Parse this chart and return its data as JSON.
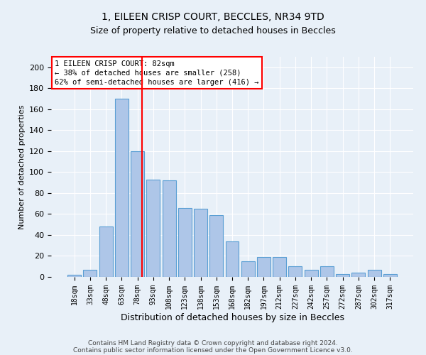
{
  "title1": "1, EILEEN CRISP COURT, BECCLES, NR34 9TD",
  "title2": "Size of property relative to detached houses in Beccles",
  "xlabel": "Distribution of detached houses by size in Beccles",
  "ylabel": "Number of detached properties",
  "categories": [
    "18sqm",
    "33sqm",
    "48sqm",
    "63sqm",
    "78sqm",
    "93sqm",
    "108sqm",
    "123sqm",
    "138sqm",
    "153sqm",
    "168sqm",
    "182sqm",
    "197sqm",
    "212sqm",
    "227sqm",
    "242sqm",
    "257sqm",
    "272sqm",
    "287sqm",
    "302sqm",
    "317sqm"
  ],
  "values": [
    2,
    7,
    48,
    170,
    120,
    93,
    92,
    66,
    65,
    59,
    34,
    15,
    19,
    19,
    10,
    7,
    10,
    3,
    4,
    7,
    3
  ],
  "bar_color": "#aec6e8",
  "bar_edge_color": "#5a9fd4",
  "bg_color": "#e8f0f8",
  "grid_color": "#ffffff",
  "vline_x": 4.27,
  "vline_color": "red",
  "annotation_text": "1 EILEEN CRISP COURT: 82sqm\n← 38% of detached houses are smaller (258)\n62% of semi-detached houses are larger (416) →",
  "annotation_box_color": "white",
  "annotation_box_edge": "red",
  "footer1": "Contains HM Land Registry data © Crown copyright and database right 2024.",
  "footer2": "Contains public sector information licensed under the Open Government Licence v3.0.",
  "ylim": [
    0,
    210
  ],
  "yticks": [
    0,
    20,
    40,
    60,
    80,
    100,
    120,
    140,
    160,
    180,
    200
  ],
  "title1_fontsize": 10,
  "title2_fontsize": 9,
  "xlabel_fontsize": 9,
  "ylabel_fontsize": 8,
  "tick_fontsize": 8,
  "xtick_fontsize": 7,
  "footer_fontsize": 6.5,
  "annotation_fontsize": 7.5
}
